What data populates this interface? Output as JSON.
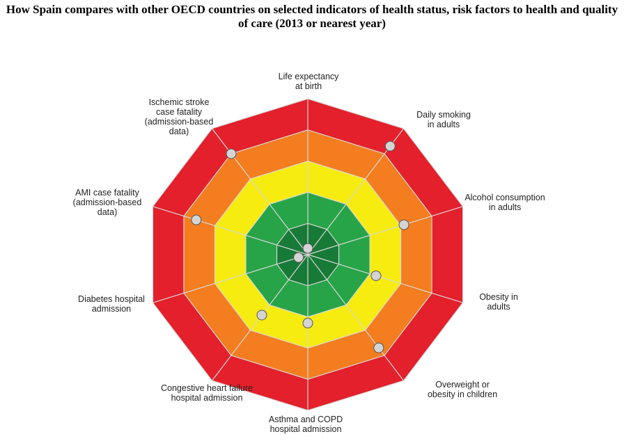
{
  "chart_data": {
    "type": "radar",
    "title": "How Spain compares with other OECD countries on selected indicators of health status, risk factors to health and quality of care (2013 or nearest year)",
    "axes": [
      "Life expectancy\nat birth",
      "Daily smoking\nin adults",
      "Alcohol consumption\nin adults",
      "Obesity in\nadults",
      "Overweight  or\nobesity in children",
      "Asthma and COPD\nhospital admission",
      "Congestive  heart failure\nhospital admission",
      "Diabetes hospital\nadmission",
      "AMI case fatality\n(admission-based\ndata)",
      "Ischemic stroke\ncase fatality\n(admission-based\ndata)"
    ],
    "bands": [
      {
        "level": 5,
        "color": "#e3202b"
      },
      {
        "level": 4,
        "color": "#f47d1f"
      },
      {
        "level": 3,
        "color": "#f7ec10"
      },
      {
        "level": 2,
        "color": "#27a448"
      },
      {
        "level": 1,
        "color": "#187a37"
      }
    ],
    "scale": [
      0,
      5
    ],
    "series": [
      {
        "name": "Spain",
        "values": [
          0.2,
          4.3,
          3.1,
          2.2,
          3.7,
          2.2,
          2.4,
          0.3,
          3.6,
          4.0
        ],
        "color": "#d4d4d4"
      }
    ]
  }
}
